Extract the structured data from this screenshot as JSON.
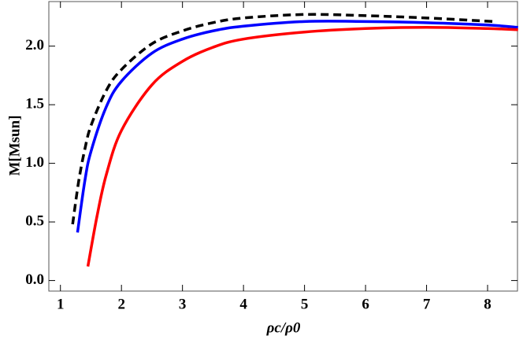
{
  "chart_data": {
    "type": "line",
    "xlabel": "ρc/ρ0",
    "ylabel": "M[Msun]",
    "xlim": [
      0.81,
      8.49
    ],
    "ylim": [
      -0.09,
      2.38
    ],
    "xticks": [
      1,
      2,
      3,
      4,
      5,
      6,
      7,
      8
    ],
    "yticks": [
      {
        "value": 0,
        "label": "0.0"
      },
      {
        "value": 0.5,
        "label": "0.5"
      },
      {
        "value": 1,
        "label": "1.0"
      },
      {
        "value": 1.5,
        "label": "1.5"
      },
      {
        "value": 2,
        "label": "2.0"
      }
    ],
    "series": [
      {
        "color": "#000000",
        "dashed": true,
        "x": [
          1.2,
          1.3,
          1.4,
          1.5,
          1.75,
          2,
          2.5,
          3,
          3.5,
          4,
          5,
          6,
          7,
          8.1
        ],
        "values": [
          0.48,
          0.85,
          1.12,
          1.32,
          1.62,
          1.8,
          2.02,
          2.13,
          2.2,
          2.24,
          2.27,
          2.26,
          2.24,
          2.21
        ]
      },
      {
        "color": "#0000ff",
        "dashed": false,
        "x": [
          1.28,
          1.4,
          1.5,
          1.75,
          2,
          2.5,
          3,
          3.5,
          4,
          5,
          6,
          7,
          8,
          8.5
        ],
        "values": [
          0.41,
          0.85,
          1.1,
          1.48,
          1.7,
          1.94,
          2.06,
          2.13,
          2.17,
          2.21,
          2.21,
          2.2,
          2.18,
          2.16
        ]
      },
      {
        "color": "#ff0000",
        "dashed": false,
        "x": [
          1.45,
          1.6,
          1.75,
          2,
          2.5,
          3,
          3.5,
          4,
          5,
          6,
          7,
          8,
          8.5
        ],
        "values": [
          0.12,
          0.55,
          0.9,
          1.28,
          1.67,
          1.87,
          1.99,
          2.06,
          2.12,
          2.15,
          2.16,
          2.15,
          2.14
        ]
      }
    ]
  }
}
